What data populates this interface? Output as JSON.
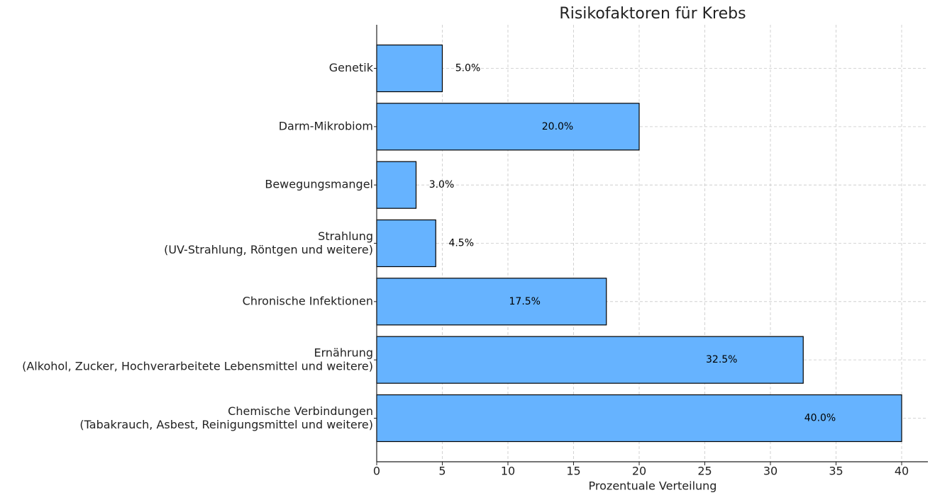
{
  "chart_data": {
    "type": "barh",
    "title": "Risikofaktoren für Krebs",
    "x_label": "Prozentuale Verteilung",
    "categories": [
      "Genetik",
      "Darm-Mikrobiom",
      "Bewegungsmangel",
      "Strahlung\n(UV-Strahlung, Röntgen und weitere)",
      "Chronische Infektionen",
      "Ernährung\n(Alkohol, Zucker, Hochverarbeitete Lebensmittel und weitere)",
      "Chemische Verbindungen\n(Tabakrauch, Asbest, Reinigungsmittel und weitere)"
    ],
    "values": [
      5,
      20,
      3,
      4.5,
      17.5,
      32.5,
      40
    ],
    "value_labels": [
      "5.0%",
      "20.0%",
      "3.0%",
      "4.5%",
      "17.5%",
      "32.5%",
      "40.0%"
    ],
    "color": "#66b3ff",
    "edge_color": "#000000",
    "xlim": [
      0,
      42
    ],
    "xticks": [
      0,
      5,
      10,
      15,
      20,
      25,
      30,
      35,
      40
    ],
    "grid": true
  }
}
